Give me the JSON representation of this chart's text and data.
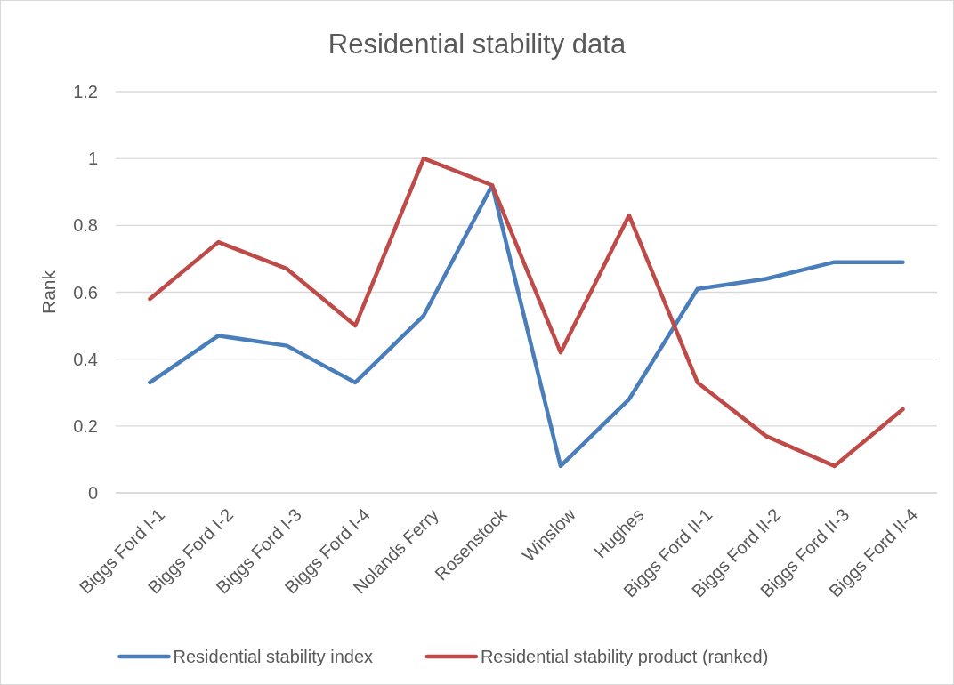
{
  "chart_data": {
    "type": "line",
    "title": "Residential stability data",
    "ylabel": "Rank",
    "categories": [
      "Biggs Ford I-1",
      "Biggs Ford I-2",
      "Biggs Ford I-3",
      "Biggs Ford I-4",
      "Nolands Ferry",
      "Rosenstock",
      "Winslow",
      "Hughes",
      "Biggs Ford II-1",
      "Biggs Ford II-2",
      "Biggs Ford II-3",
      "Biggs Ford II-4"
    ],
    "series": [
      {
        "name": "Residential stability index",
        "color": "#4a7ebb",
        "values": [
          0.33,
          0.47,
          0.44,
          0.33,
          0.53,
          0.92,
          0.08,
          0.28,
          0.61,
          0.64,
          0.69,
          0.69
        ]
      },
      {
        "name": "Residential stability product (ranked)",
        "color": "#be4b48",
        "values": [
          0.58,
          0.75,
          0.67,
          0.5,
          1,
          0.92,
          0.42,
          0.83,
          0.33,
          0.17,
          0.08,
          0.25
        ]
      }
    ],
    "ylim": [
      0,
      1.2
    ],
    "yticks": [
      0,
      0.2,
      0.4,
      0.6,
      0.8,
      1,
      1.2
    ],
    "grid": "y",
    "legend": "bottom",
    "marker": "none",
    "line_style": "solid"
  }
}
